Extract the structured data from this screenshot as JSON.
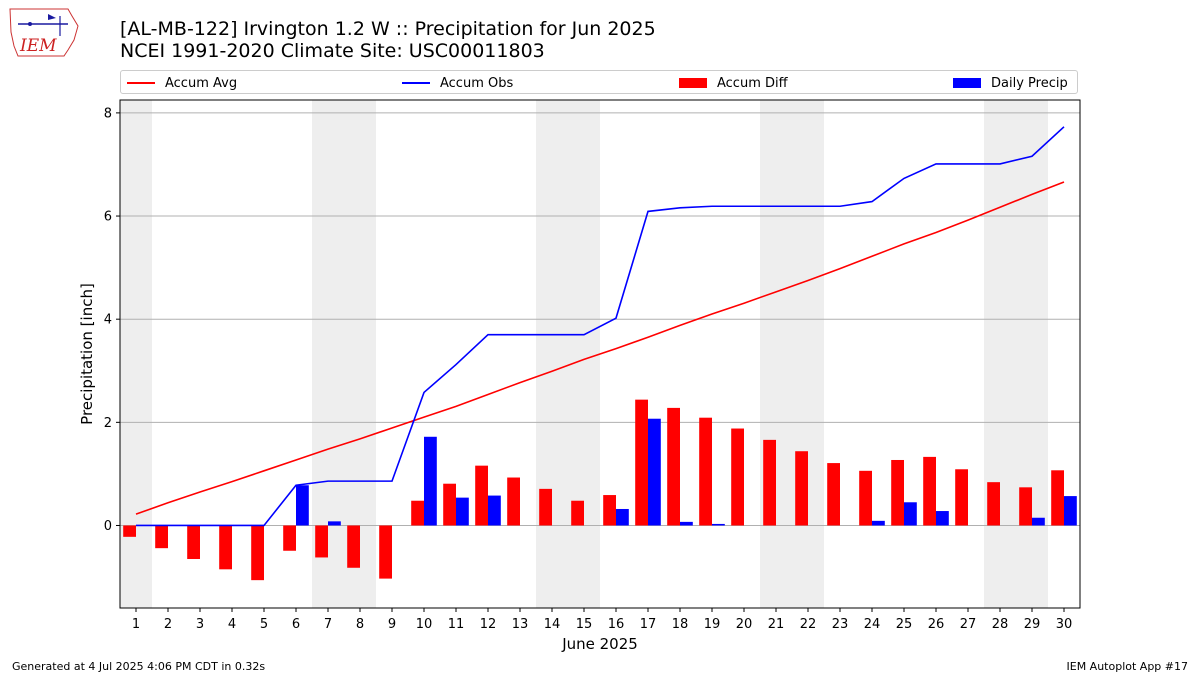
{
  "header": {
    "title_line1": "[AL-MB-122] Irvington 1.2 W :: Precipitation for Jun 2025",
    "title_line2": "NCEI 1991-2020 Climate Site: USC00011803",
    "logo_text": "IEM"
  },
  "footer": {
    "generated": "Generated at 4 Jul 2025 4:06 PM CDT in 0.32s",
    "app": "IEM Autoplot App #17"
  },
  "legend": [
    {
      "label": "Accum Avg",
      "kind": "line",
      "color": "#ff0000"
    },
    {
      "label": "Accum Obs",
      "kind": "line",
      "color": "#0000ff"
    },
    {
      "label": "Accum Diff",
      "kind": "bar",
      "color": "#ff0000"
    },
    {
      "label": "Daily Precip",
      "kind": "bar",
      "color": "#0000ff"
    }
  ],
  "chart_data": {
    "type": "bar",
    "xlabel": "June 2025",
    "ylabel": "Precipitation [inch]",
    "x": [
      1,
      2,
      3,
      4,
      5,
      6,
      7,
      8,
      9,
      10,
      11,
      12,
      13,
      14,
      15,
      16,
      17,
      18,
      19,
      20,
      21,
      22,
      23,
      24,
      25,
      26,
      27,
      28,
      29,
      30
    ],
    "xlim": [
      0.5,
      30.5
    ],
    "ylim": [
      -1.6,
      8.25
    ],
    "yticks": [
      0,
      2,
      4,
      6,
      8
    ],
    "grid": "horizontal",
    "weekend_shading": [
      [
        0.5,
        1.5
      ],
      [
        6.5,
        8.5
      ],
      [
        13.5,
        15.5
      ],
      [
        20.5,
        22.5
      ],
      [
        27.5,
        29.5
      ]
    ],
    "legend_position": "top",
    "series": [
      {
        "name": "Accum Avg",
        "type": "line",
        "color": "#ff0000",
        "values": [
          0.22,
          0.44,
          0.65,
          0.85,
          1.06,
          1.27,
          1.48,
          1.68,
          1.89,
          2.1,
          2.31,
          2.54,
          2.77,
          2.99,
          3.22,
          3.43,
          3.65,
          3.88,
          4.1,
          4.31,
          4.53,
          4.75,
          4.98,
          5.22,
          5.46,
          5.68,
          5.92,
          6.17,
          6.42,
          6.66
        ]
      },
      {
        "name": "Accum Obs",
        "type": "line",
        "color": "#0000ff",
        "values": [
          0,
          0,
          0,
          0,
          0,
          0.78,
          0.86,
          0.86,
          0.86,
          2.58,
          3.12,
          3.7,
          3.7,
          3.7,
          3.7,
          4.02,
          6.09,
          6.16,
          6.19,
          6.19,
          6.19,
          6.19,
          6.19,
          6.28,
          6.73,
          7.01,
          7.01,
          7.01,
          7.16,
          7.73
        ]
      },
      {
        "name": "Accum Diff",
        "type": "bar",
        "color": "#ff0000",
        "values": [
          -0.22,
          -0.44,
          -0.65,
          -0.85,
          -1.06,
          -0.49,
          -0.62,
          -0.82,
          -1.03,
          0.48,
          0.81,
          1.16,
          0.93,
          0.71,
          0.48,
          0.59,
          2.44,
          2.28,
          2.09,
          1.88,
          1.66,
          1.44,
          1.21,
          1.06,
          1.27,
          1.33,
          1.09,
          0.84,
          0.74,
          1.07
        ]
      },
      {
        "name": "Daily Precip",
        "type": "bar",
        "color": "#0000ff",
        "values": [
          0,
          0,
          0,
          0,
          0,
          0.78,
          0.08,
          0,
          0,
          1.72,
          0.54,
          0.58,
          0,
          0,
          0,
          0.32,
          2.07,
          0.07,
          0.03,
          0,
          0,
          0,
          0,
          0.09,
          0.45,
          0.28,
          0,
          0,
          0.15,
          0.57
        ]
      }
    ]
  }
}
